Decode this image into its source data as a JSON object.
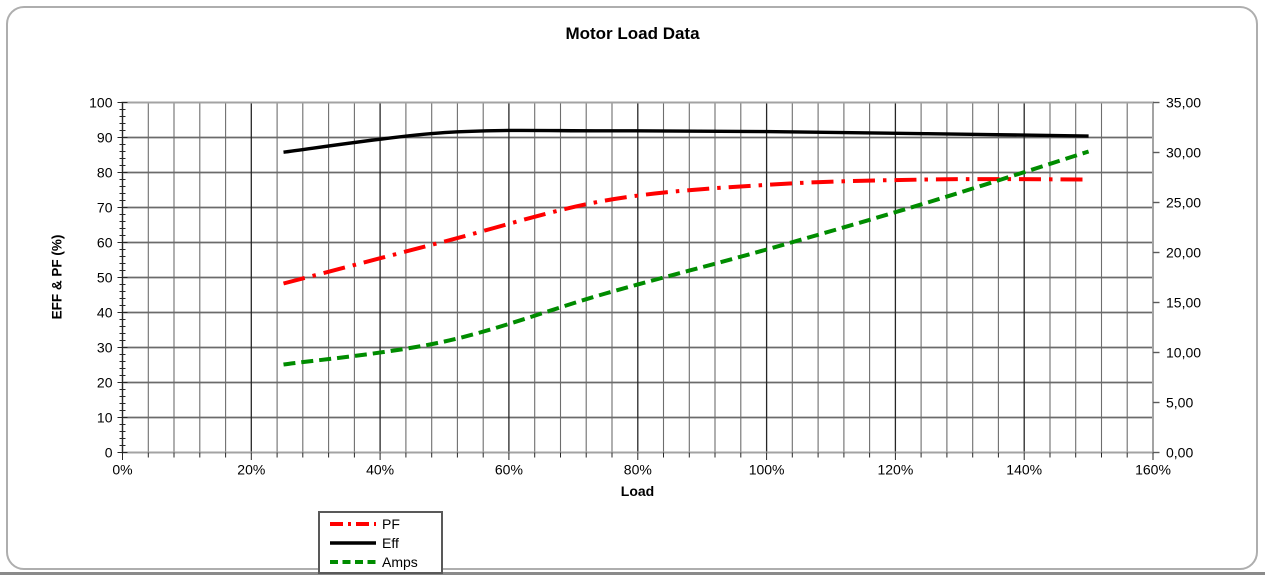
{
  "chart_data": {
    "type": "line",
    "title": "Motor Load Data",
    "xlabel": "Load",
    "ylabel_left": "EFF & PF (%)",
    "xlim": [
      0,
      160
    ],
    "x_tick_step": 20,
    "x_minor_grid_step": 4,
    "x_tick_labels": [
      "0%",
      "20%",
      "40%",
      "60%",
      "80%",
      "100%",
      "120%",
      "140%",
      "160%"
    ],
    "ylim_left": [
      0,
      100
    ],
    "y_left_tick_step": 10,
    "y_left_minor_tick_step": 2,
    "y_left_tick_labels": [
      "0",
      "10",
      "20",
      "30",
      "40",
      "50",
      "60",
      "70",
      "80",
      "90",
      "100"
    ],
    "ylim_right": [
      0,
      35
    ],
    "y_right_tick_step": 5,
    "y_right_tick_labels": [
      "0,00",
      "5,00",
      "10,00",
      "15,00",
      "20,00",
      "25,00",
      "30,00",
      "35,00"
    ],
    "grid": "horizontal-major + vertical-major + vertical-minor",
    "legend_position": "bottom-left",
    "x": [
      25,
      50,
      75,
      100,
      125,
      150
    ],
    "series": [
      {
        "name": "PF",
        "axis": "left",
        "color": "#ff0000",
        "line_style": "long-dash-dot",
        "values": [
          48.3,
          60.3,
          72.0,
          76.5,
          78.0,
          78.0
        ]
      },
      {
        "name": "Eff",
        "axis": "left",
        "color": "#000000",
        "line_style": "solid",
        "values": [
          85.8,
          91.4,
          91.9,
          91.7,
          91.1,
          90.4
        ]
      },
      {
        "name": "Amps",
        "axis": "right",
        "color": "#008c00",
        "line_style": "dashed",
        "values": [
          8.8,
          11.1,
          15.9,
          20.3,
          25.0,
          30.1
        ]
      }
    ]
  }
}
